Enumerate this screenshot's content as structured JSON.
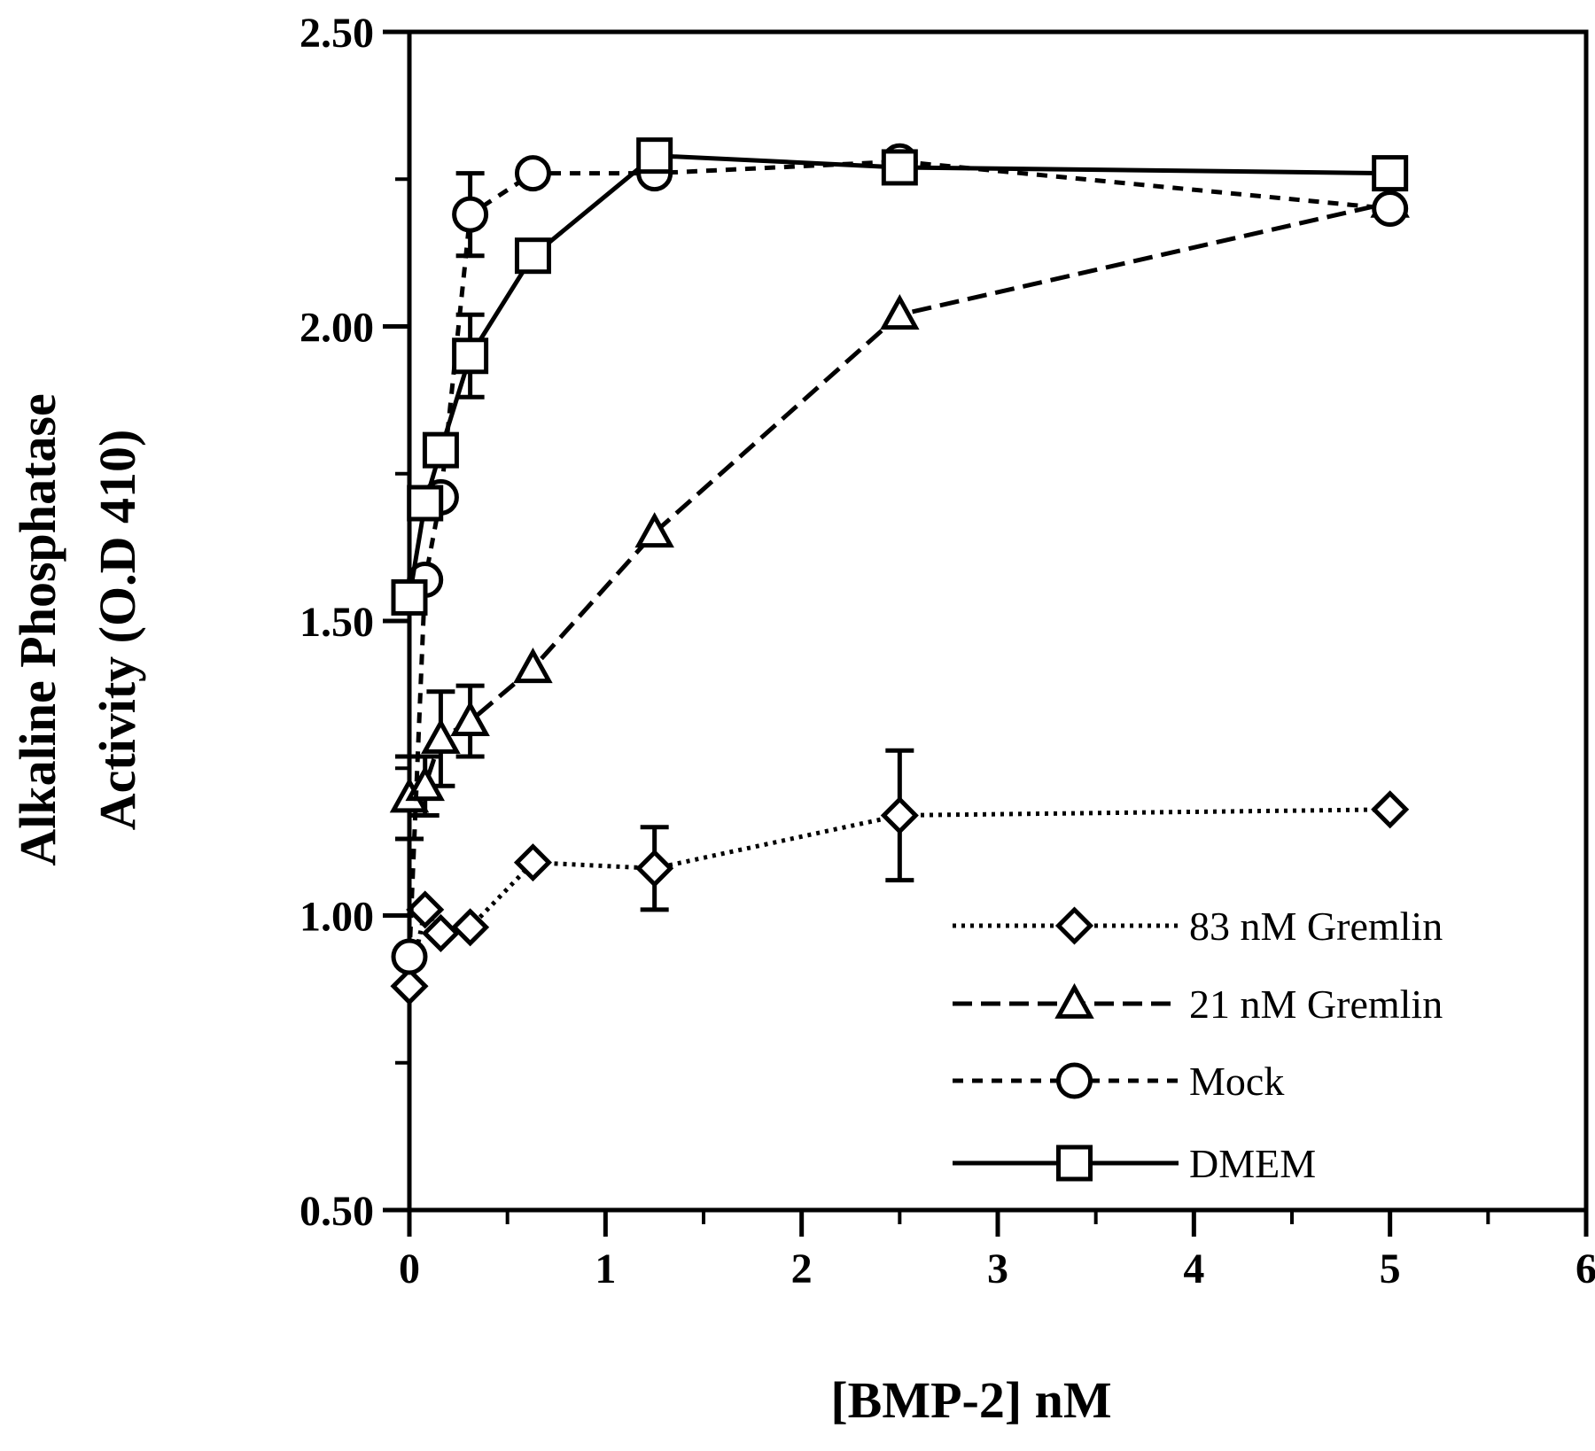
{
  "chart_data": {
    "type": "line",
    "xlabel": "[BMP-2] nM",
    "ylabel": [
      "Alkaline Phosphatase",
      "Activity (O.D 410)"
    ],
    "xlim": [
      0,
      6
    ],
    "ylim": [
      0.5,
      2.5
    ],
    "xticks": [
      0,
      1,
      2,
      3,
      4,
      5,
      6
    ],
    "yticks": [
      0.5,
      1.0,
      1.5,
      2.0,
      2.5
    ],
    "xtick_labels": [
      "0",
      "1",
      "2",
      "3",
      "4",
      "5",
      "6"
    ],
    "ytick_labels": [
      "0.50",
      "1.00",
      "1.50",
      "2.00",
      "2.50"
    ],
    "grid": false,
    "legend_position": "bottom-right",
    "series": [
      {
        "name": "83 nM Gremlin",
        "marker": "diamond",
        "line_style": "dotted",
        "points": [
          {
            "x": 0,
            "y": 0.88
          },
          {
            "x": 0.08,
            "y": 1.01
          },
          {
            "x": 0.16,
            "y": 0.97
          },
          {
            "x": 0.31,
            "y": 0.98
          },
          {
            "x": 0.63,
            "y": 1.09
          },
          {
            "x": 1.25,
            "y": 1.08,
            "err": 0.07
          },
          {
            "x": 2.5,
            "y": 1.17,
            "err": 0.11
          },
          {
            "x": 5,
            "y": 1.18
          }
        ]
      },
      {
        "name": "21 nM Gremlin",
        "marker": "triangle",
        "line_style": "dashed",
        "points": [
          {
            "x": 0,
            "y": 1.2,
            "err": 0.07
          },
          {
            "x": 0.08,
            "y": 1.22,
            "err": 0.05
          },
          {
            "x": 0.16,
            "y": 1.3,
            "err": 0.08
          },
          {
            "x": 0.31,
            "y": 1.33,
            "err": 0.06
          },
          {
            "x": 0.63,
            "y": 1.42
          },
          {
            "x": 1.25,
            "y": 1.65
          },
          {
            "x": 2.5,
            "y": 2.02
          },
          {
            "x": 5,
            "y": 2.21
          }
        ]
      },
      {
        "name": "Mock",
        "marker": "circle",
        "line_style": "short-dashed",
        "points": [
          {
            "x": 0,
            "y": 0.93
          },
          {
            "x": 0.08,
            "y": 1.57
          },
          {
            "x": 0.16,
            "y": 1.71
          },
          {
            "x": 0.31,
            "y": 2.19,
            "err": 0.07
          },
          {
            "x": 0.63,
            "y": 2.26
          },
          {
            "x": 1.25,
            "y": 2.26
          },
          {
            "x": 2.5,
            "y": 2.28
          },
          {
            "x": 5,
            "y": 2.2
          }
        ]
      },
      {
        "name": "DMEM",
        "marker": "square",
        "line_style": "solid",
        "points": [
          {
            "x": 0,
            "y": 1.54
          },
          {
            "x": 0.08,
            "y": 1.7
          },
          {
            "x": 0.16,
            "y": 1.79
          },
          {
            "x": 0.31,
            "y": 1.95,
            "err": 0.07
          },
          {
            "x": 0.63,
            "y": 2.12
          },
          {
            "x": 1.25,
            "y": 2.29
          },
          {
            "x": 2.5,
            "y": 2.27
          },
          {
            "x": 5,
            "y": 2.26
          }
        ]
      }
    ]
  }
}
